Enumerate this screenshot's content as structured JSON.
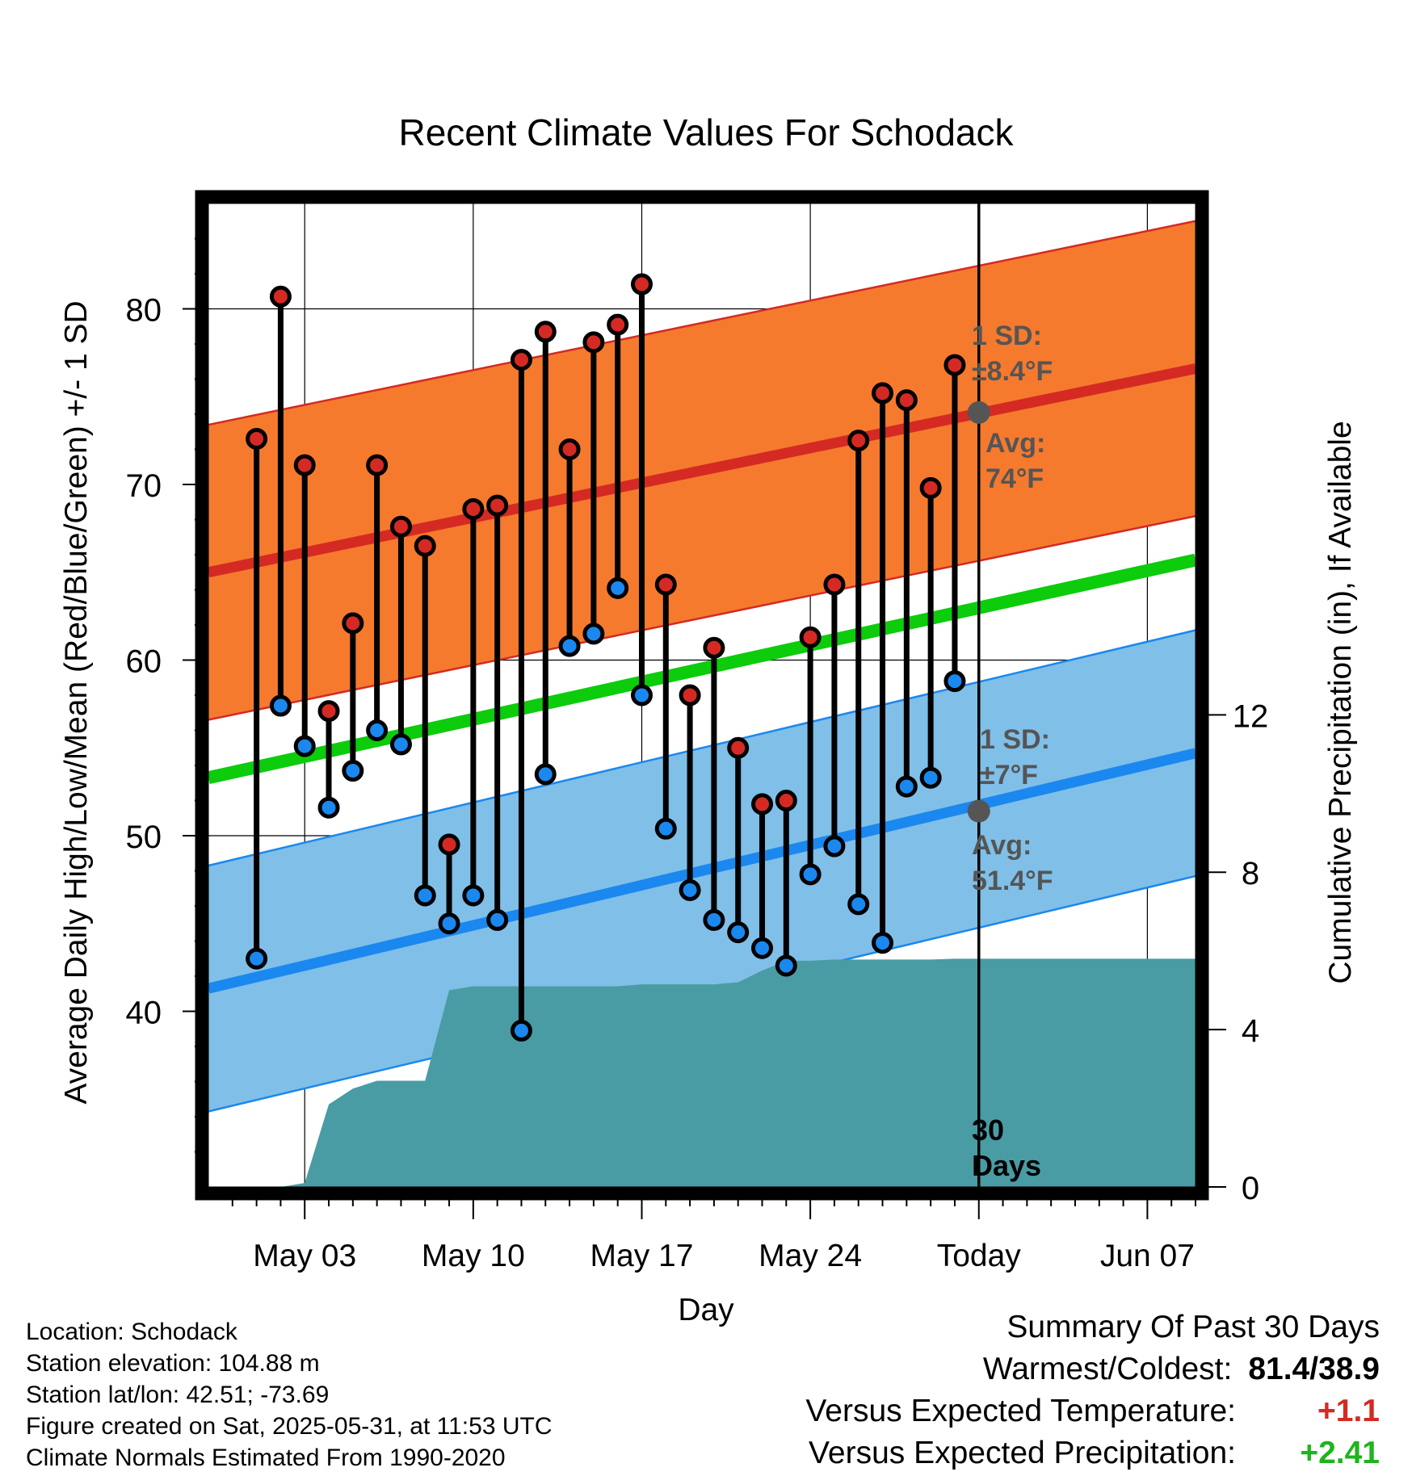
{
  "chart_data": {
    "type": "line",
    "title": "Recent Climate Values For Schodack",
    "xlabel": "Day",
    "ylabel_left": "Average Daily High/Low/Mean (Red/Blue/Green) +/- 1 SD",
    "ylabel_right": "Cumulative Precipitation (in), If Available",
    "x_ticks": [
      "May 03",
      "May 10",
      "May 17",
      "May 24",
      "Today",
      "Jun 07"
    ],
    "y_left_ticks": [
      "40",
      "50",
      "60",
      "70",
      "80"
    ],
    "y_left_range": [
      30,
      86
    ],
    "y_right_ticks": [
      "0",
      "4",
      "8",
      "12"
    ],
    "y_right_range": [
      0,
      25
    ],
    "x_range_days": [
      "2025-04-29",
      "2025-06-09"
    ],
    "today_date": "2025-05-31",
    "today_marker_text": "30\nDays",
    "days": [
      "2025-05-01",
      "2025-05-02",
      "2025-05-03",
      "2025-05-04",
      "2025-05-05",
      "2025-05-06",
      "2025-05-07",
      "2025-05-08",
      "2025-05-09",
      "2025-05-10",
      "2025-05-11",
      "2025-05-12",
      "2025-05-13",
      "2025-05-14",
      "2025-05-15",
      "2025-05-16",
      "2025-05-17",
      "2025-05-18",
      "2025-05-19",
      "2025-05-20",
      "2025-05-21",
      "2025-05-22",
      "2025-05-23",
      "2025-05-24",
      "2025-05-25",
      "2025-05-26",
      "2025-05-27",
      "2025-05-28",
      "2025-05-29",
      "2025-05-30"
    ],
    "daily_high": [
      72.6,
      80.7,
      71.1,
      57.1,
      62.1,
      71.1,
      67.6,
      66.5,
      49.5,
      68.6,
      68.8,
      77.1,
      78.7,
      72.0,
      78.1,
      79.1,
      81.4,
      64.3,
      58.0,
      60.7,
      55.0,
      51.8,
      52.0,
      61.3,
      64.3,
      72.5,
      75.2,
      74.8,
      69.8,
      76.8
    ],
    "daily_low": [
      43.0,
      57.4,
      55.1,
      51.6,
      53.7,
      56.0,
      55.2,
      46.6,
      45.0,
      46.6,
      45.2,
      38.9,
      53.5,
      60.8,
      61.5,
      64.1,
      58.0,
      50.4,
      46.9,
      45.2,
      44.5,
      43.6,
      42.6,
      47.8,
      49.4,
      46.1,
      43.9,
      52.8,
      53.3,
      58.8
    ],
    "normal_high": {
      "start_value": 65.0,
      "end_value": 76.6,
      "sd_label": "1 SD:\n±8.4°F",
      "sd": 8.4,
      "avg_today_label": "Avg:\n74°F",
      "avg_today": 74.1
    },
    "normal_low": {
      "start_value": 41.3,
      "end_value": 54.7,
      "sd_label": "1 SD:\n±7°F",
      "sd": 7,
      "avg_today_label": "Avg:\n51.4°F",
      "avg_today": 51.4
    },
    "normal_mean": {
      "start_value": 53.3,
      "end_value": 65.7
    },
    "cumulative_precip": {
      "x": [
        "2025-05-01",
        "2025-05-02",
        "2025-05-03",
        "2025-05-04",
        "2025-05-05",
        "2025-05-06",
        "2025-05-07",
        "2025-05-08",
        "2025-05-09",
        "2025-05-10",
        "2025-05-11",
        "2025-05-12",
        "2025-05-13",
        "2025-05-14",
        "2025-05-15",
        "2025-05-16",
        "2025-05-17",
        "2025-05-18",
        "2025-05-19",
        "2025-05-20",
        "2025-05-21",
        "2025-05-22",
        "2025-05-23",
        "2025-05-24",
        "2025-05-25",
        "2025-05-26",
        "2025-05-27",
        "2025-05-28",
        "2025-05-29",
        "2025-05-30",
        "2025-05-31",
        "2025-06-09"
      ],
      "y": [
        0.0,
        0.0,
        0.1,
        2.1,
        2.5,
        2.7,
        2.7,
        2.7,
        5.0,
        5.1,
        5.1,
        5.1,
        5.1,
        5.1,
        5.1,
        5.1,
        5.15,
        5.15,
        5.15,
        5.15,
        5.2,
        5.5,
        5.75,
        5.75,
        5.78,
        5.78,
        5.78,
        5.78,
        5.78,
        5.8,
        5.8,
        5.8
      ]
    },
    "colors": {
      "high_band": "#f57a2e",
      "high_line": "#d42a23",
      "low_band": "#80bfe8",
      "low_line": "#1a88ee",
      "mean_line": "#0ccc0c",
      "precip": "#499ca4",
      "high_marker": "#d42a23",
      "low_marker": "#1a88ee",
      "avg_label": "#555555"
    },
    "grid": true
  },
  "footer": {
    "location": "Location: Schodack",
    "elevation": "Station elevation: 104.88 m",
    "latlon": "Station lat/lon: 42.51; -73.69",
    "created": "Figure created on Sat, 2025-05-31, at 11:53 UTC",
    "normals": "Climate Normals Estimated From 1990-2020"
  },
  "summary": {
    "title": "Summary Of Past 30 Days",
    "warmest_coldest_label": "Warmest/Coldest:",
    "warmest_coldest_value": "81.4/38.9",
    "temp_label": "Versus Expected Temperature:",
    "temp_value": "+1.1",
    "temp_color": "#d42a23",
    "precip_label": "Versus Expected Precipitation:",
    "precip_value": "+2.41",
    "precip_color": "#1cb51c"
  }
}
